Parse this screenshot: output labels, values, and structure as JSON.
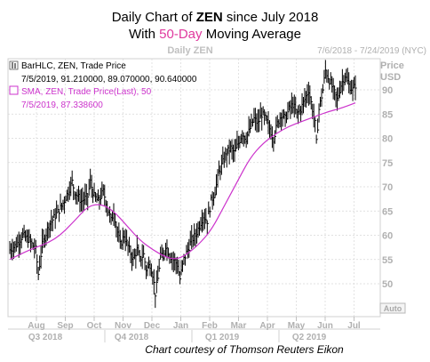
{
  "header": {
    "title_prefix": "Daily Chart of ",
    "ticker": "ZEN",
    "title_suffix": " since July 2018",
    "subtitle_prefix": "With ",
    "subtitle_highlight": "50-Day",
    "subtitle_suffix": " Moving Average"
  },
  "panel": {
    "name": "Daily ZEN",
    "date_range": "7/6/2018 - 7/24/2019 (NYC)",
    "price_label": "Price",
    "price_unit": "USD",
    "auto_button": "Auto"
  },
  "legend": {
    "bar_series": "BarHLC, ZEN, Trade Price",
    "bar_values": "7/5/2019, 91.210000, 89.070000, 90.640000",
    "sma_series": "SMA, ZEN, Trade Price(Last), 50",
    "sma_values": "7/5/2019, 87.338600"
  },
  "footer": {
    "credit": "Chart courtesy of Thomson Reuters Eikon"
  },
  "colors": {
    "bars": "#000000",
    "sma": "#cc33cc",
    "highlight": "#e0399e",
    "axis_text": "#b0b0b0",
    "grid": "#d8d8d8"
  },
  "chart_data": {
    "type": "line",
    "ylim": [
      45,
      98
    ],
    "y_ticks": [
      "50",
      "55",
      "60",
      "65",
      "70",
      "75",
      "80",
      "85",
      "90"
    ],
    "months": [
      "Aug",
      "Sep",
      "Oct",
      "Nov",
      "Dec",
      "Jan",
      "Feb",
      "Mar",
      "Apr",
      "May",
      "Jun",
      "Jul"
    ],
    "quarters": [
      "Q3 2018",
      "Q4 2018",
      "Q1 2019",
      "Q2 2019"
    ],
    "price_path": [
      [
        0,
        57
      ],
      [
        5,
        58
      ],
      [
        10,
        60
      ],
      [
        15,
        59
      ],
      [
        20,
        57
      ],
      [
        22,
        52
      ],
      [
        25,
        58
      ],
      [
        30,
        62
      ],
      [
        35,
        64
      ],
      [
        40,
        66
      ],
      [
        45,
        69
      ],
      [
        48,
        71
      ],
      [
        50,
        69
      ],
      [
        55,
        67
      ],
      [
        60,
        68
      ],
      [
        62,
        71
      ],
      [
        65,
        68
      ],
      [
        68,
        67
      ],
      [
        72,
        69
      ],
      [
        75,
        66
      ],
      [
        78,
        63
      ],
      [
        80,
        65
      ],
      [
        82,
        62
      ],
      [
        85,
        58
      ],
      [
        88,
        60
      ],
      [
        92,
        57
      ],
      [
        95,
        55
      ],
      [
        98,
        57
      ],
      [
        100,
        55
      ],
      [
        103,
        56
      ],
      [
        105,
        53
      ],
      [
        108,
        54
      ],
      [
        110,
        52
      ],
      [
        112,
        48
      ],
      [
        114,
        51
      ],
      [
        116,
        56
      ],
      [
        118,
        55
      ],
      [
        120,
        58
      ],
      [
        123,
        56
      ],
      [
        126,
        55
      ],
      [
        129,
        54
      ],
      [
        131,
        51
      ],
      [
        134,
        55
      ],
      [
        137,
        57
      ],
      [
        140,
        59
      ],
      [
        143,
        60
      ],
      [
        146,
        62
      ],
      [
        149,
        64
      ],
      [
        152,
        63
      ],
      [
        155,
        67
      ],
      [
        158,
        69
      ],
      [
        161,
        73
      ],
      [
        164,
        75
      ],
      [
        167,
        77
      ],
      [
        170,
        78
      ],
      [
        173,
        77
      ],
      [
        176,
        79
      ],
      [
        179,
        81
      ],
      [
        182,
        80
      ],
      [
        185,
        82
      ],
      [
        188,
        84
      ],
      [
        191,
        83
      ],
      [
        194,
        85
      ],
      [
        197,
        84
      ],
      [
        200,
        82
      ],
      [
        203,
        80
      ],
      [
        206,
        83
      ],
      [
        209,
        85
      ],
      [
        212,
        84
      ],
      [
        215,
        86
      ],
      [
        218,
        87
      ],
      [
        221,
        85
      ],
      [
        224,
        86
      ],
      [
        227,
        88
      ],
      [
        230,
        90
      ],
      [
        233,
        86
      ],
      [
        235,
        83
      ],
      [
        236,
        79
      ],
      [
        238,
        86
      ],
      [
        241,
        90
      ],
      [
        243,
        94
      ],
      [
        246,
        92
      ],
      [
        249,
        90
      ],
      [
        252,
        88
      ],
      [
        255,
        91
      ],
      [
        258,
        93
      ],
      [
        261,
        91
      ],
      [
        264,
        90
      ],
      [
        266,
        91
      ]
    ],
    "sma_path": [
      [
        0,
        55
      ],
      [
        15,
        57
      ],
      [
        35,
        59
      ],
      [
        50,
        63
      ],
      [
        60,
        66
      ],
      [
        70,
        66.5
      ],
      [
        80,
        65
      ],
      [
        90,
        62
      ],
      [
        100,
        59
      ],
      [
        110,
        57
      ],
      [
        120,
        55.5
      ],
      [
        128,
        55
      ],
      [
        136,
        56
      ],
      [
        145,
        58
      ],
      [
        155,
        61
      ],
      [
        165,
        66
      ],
      [
        175,
        71
      ],
      [
        185,
        76
      ],
      [
        195,
        79
      ],
      [
        205,
        81
      ],
      [
        215,
        82.5
      ],
      [
        225,
        83.5
      ],
      [
        235,
        84.5
      ],
      [
        245,
        85.5
      ],
      [
        255,
        86.2
      ],
      [
        266,
        87.3
      ]
    ]
  }
}
